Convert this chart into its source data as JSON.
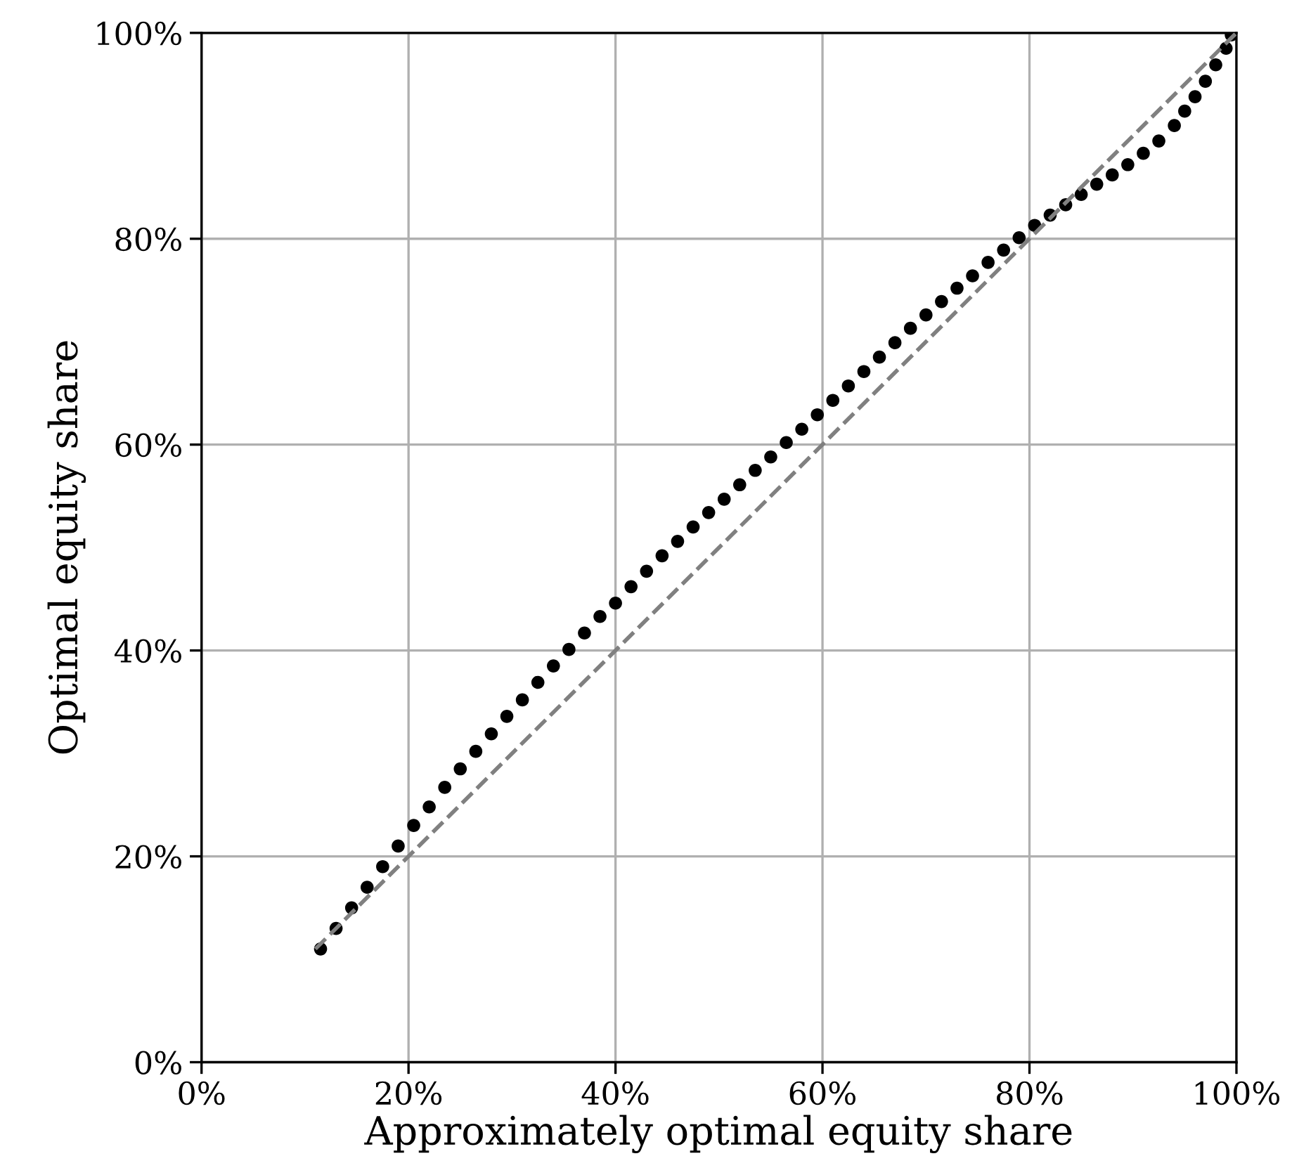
{
  "chart_data": {
    "type": "scatter",
    "xlabel": "Approximately optimal equity share",
    "ylabel": "Optimal equity share",
    "xlim": [
      0,
      100
    ],
    "ylim": [
      0,
      100
    ],
    "xticks": [
      {
        "value": 0,
        "label": "0%"
      },
      {
        "value": 20,
        "label": "20%"
      },
      {
        "value": 40,
        "label": "40%"
      },
      {
        "value": 60,
        "label": "60%"
      },
      {
        "value": 80,
        "label": "80%"
      },
      {
        "value": 100,
        "label": "100%"
      }
    ],
    "yticks": [
      {
        "value": 0,
        "label": "0%"
      },
      {
        "value": 20,
        "label": "20%"
      },
      {
        "value": 40,
        "label": "40%"
      },
      {
        "value": 60,
        "label": "60%"
      },
      {
        "value": 80,
        "label": "80%"
      },
      {
        "value": 100,
        "label": "100%"
      }
    ],
    "grid": true,
    "legend": false,
    "series": [
      {
        "color": "#000000",
        "marker": "circle",
        "x": [
          11.5,
          13,
          14.5,
          16,
          17.5,
          19,
          20.5,
          22,
          23.5,
          25,
          26.5,
          28,
          29.5,
          31,
          32.5,
          34,
          35.5,
          37,
          38.5,
          40,
          41.5,
          43,
          44.5,
          46,
          47.5,
          49,
          50.5,
          52,
          53.5,
          55,
          56.5,
          58,
          59.5,
          61,
          62.5,
          64,
          65.5,
          67,
          68.5,
          70,
          71.5,
          73,
          74.5,
          76,
          77.5,
          79,
          80.5,
          82,
          83.5,
          85,
          86.5,
          88,
          89.5,
          91,
          92.5,
          94,
          95,
          96,
          97,
          98,
          99,
          99.5
        ],
        "values": [
          11,
          13,
          15,
          17,
          19,
          21,
          23,
          24.8,
          26.7,
          28.5,
          30.2,
          31.9,
          33.6,
          35.2,
          36.9,
          38.5,
          40.1,
          41.7,
          43.3,
          44.6,
          46.2,
          47.7,
          49.2,
          50.6,
          52,
          53.4,
          54.7,
          56.1,
          57.5,
          58.8,
          60.2,
          61.5,
          62.9,
          64.3,
          65.7,
          67.1,
          68.5,
          69.9,
          71.3,
          72.6,
          73.9,
          75.2,
          76.4,
          77.7,
          78.9,
          80.1,
          81.3,
          82.3,
          83.3,
          84.3,
          85.3,
          86.2,
          87.2,
          88.3,
          89.5,
          91,
          92.4,
          93.8,
          95.3,
          96.9,
          98.5,
          99.8
        ]
      },
      {
        "type": "line",
        "color": "#808080",
        "line_style": "dashed",
        "marker": "none",
        "x": [
          11,
          100
        ],
        "values": [
          11,
          100
        ]
      }
    ]
  }
}
